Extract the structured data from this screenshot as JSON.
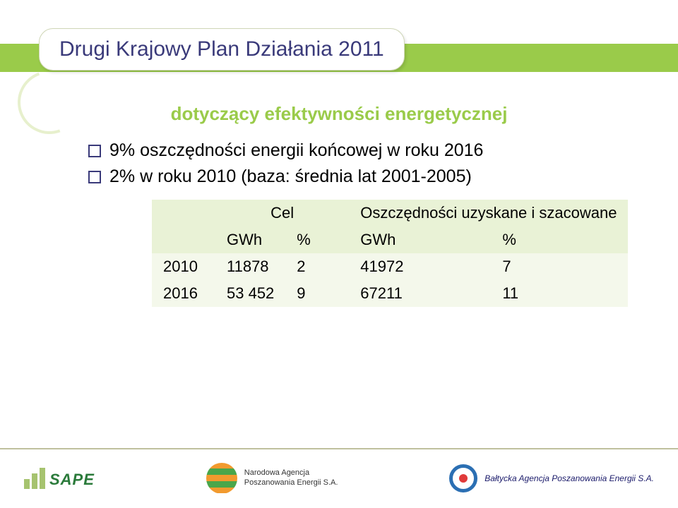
{
  "title": "Drugi Krajowy Plan Działania 2011",
  "subtitle": "dotyczący efektywności energetycznej",
  "bullets": [
    "9% oszczędności energii końcowej w roku 2016",
    "2% w roku 2010 (baza: średnia lat 2001-2005)"
  ],
  "table": {
    "header_group1": "Cel",
    "header_group2": "Oszczędności uzyskane i szacowane",
    "unit_cols": [
      "GWh",
      "%",
      "GWh",
      "%"
    ],
    "rows": [
      {
        "year": "2010",
        "c1": "11878",
        "c2": "2",
        "c3": "41972",
        "c4": "7"
      },
      {
        "year": "2016",
        "c1": "53 452",
        "c2": "9",
        "c3": "67211",
        "c4": "11"
      }
    ]
  },
  "footer": {
    "sape": "SAPE",
    "nape": "Narodowa Agencja\nPoszanowania Energii S.A.",
    "bape": "Bałtycka Agencja Poszanowania Energii S.A."
  },
  "colors": {
    "accent_green": "#9acb4a",
    "title_text": "#3a3a7a",
    "table_head_bg": "#e9f2d6",
    "table_row_bg": "#f4f8eb"
  }
}
